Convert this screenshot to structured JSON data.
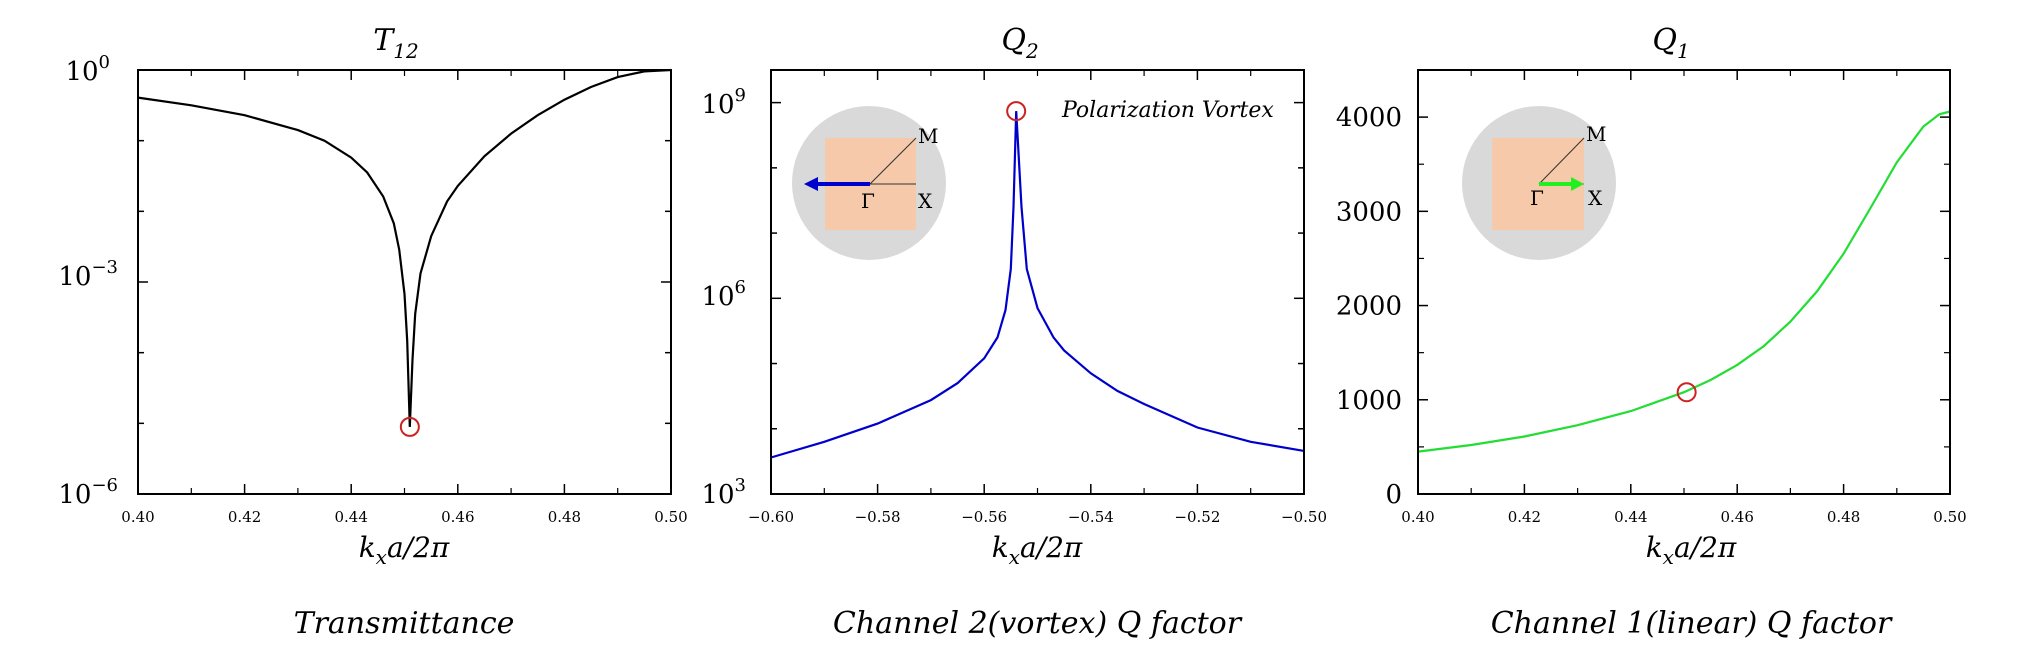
{
  "chart_data": [
    {
      "type": "line",
      "title": "T",
      "title_sub": "12",
      "xlabel": "k_x a/2π",
      "caption": "Transmittance",
      "yscale": "log",
      "xlim": [
        0.4,
        0.5
      ],
      "ylim_exp": [
        -6,
        0
      ],
      "x_ticks": [
        "0.40",
        "0.42",
        "0.44",
        "0.46",
        "0.48",
        "0.50"
      ],
      "y_ticks": [
        {
          "base": "10",
          "exp": "0"
        },
        {
          "base": "10",
          "exp": "−3"
        },
        {
          "base": "10",
          "exp": "−6"
        }
      ],
      "color": "#000000",
      "series": [
        {
          "x": [
            0.4,
            0.41,
            0.42,
            0.43,
            0.435,
            0.44,
            0.443,
            0.446,
            0.448,
            0.449,
            0.45,
            0.4505,
            0.451,
            0.4515,
            0.452,
            0.453,
            0.455,
            0.458,
            0.46,
            0.465,
            0.47,
            0.475,
            0.48,
            0.485,
            0.49,
            0.495,
            0.5
          ],
          "y_log10": [
            -0.39,
            -0.5,
            -0.64,
            -0.85,
            -1.0,
            -1.24,
            -1.45,
            -1.79,
            -2.17,
            -2.54,
            -3.17,
            -3.83,
            -5.05,
            -4.1,
            -3.45,
            -2.88,
            -2.35,
            -1.86,
            -1.64,
            -1.22,
            -0.9,
            -0.64,
            -0.42,
            -0.24,
            -0.1,
            -0.02,
            0.0
          ]
        }
      ],
      "marker": {
        "x": 0.451,
        "y_log10": -5.05
      }
    },
    {
      "type": "line",
      "title": "Q",
      "title_sub": "2",
      "xlabel": "k_x a/2π",
      "caption": "Channel 2(vortex) Q factor",
      "yscale": "log",
      "xlim": [
        -0.6,
        -0.5
      ],
      "ylim_exp": [
        3,
        9.5
      ],
      "x_ticks": [
        "−0.60",
        "−0.58",
        "−0.56",
        "−0.54",
        "−0.52",
        "−0.50"
      ],
      "y_ticks": [
        {
          "base": "10",
          "exp": "9"
        },
        {
          "base": "10",
          "exp": "6"
        },
        {
          "base": "10",
          "exp": "3"
        }
      ],
      "color": "#0000cc",
      "series": [
        {
          "x": [
            -0.6,
            -0.59,
            -0.58,
            -0.57,
            -0.565,
            -0.56,
            -0.5575,
            -0.556,
            -0.555,
            -0.5545,
            -0.554,
            -0.553,
            -0.552,
            -0.55,
            -0.547,
            -0.545,
            -0.54,
            -0.535,
            -0.53,
            -0.52,
            -0.51,
            -0.5
          ],
          "y_log10": [
            3.56,
            3.8,
            4.08,
            4.44,
            4.7,
            5.08,
            5.4,
            5.82,
            6.45,
            7.4,
            8.87,
            7.4,
            6.45,
            5.85,
            5.4,
            5.2,
            4.85,
            4.58,
            4.38,
            4.02,
            3.8,
            3.66
          ]
        }
      ],
      "marker": {
        "x": -0.554,
        "y_log10": 8.87
      },
      "annotation": "Polarization Vortex",
      "inset": {
        "labels": [
          "M",
          "Γ",
          "X"
        ],
        "arrow_color": "#0000cc",
        "arrow_direction": "left"
      }
    },
    {
      "type": "line",
      "title": "Q",
      "title_sub": "1",
      "xlabel": "k_x a/2π",
      "caption": "Channel 1(linear) Q factor",
      "yscale": "linear",
      "xlim": [
        0.4,
        0.5
      ],
      "ylim": [
        0,
        4500
      ],
      "x_ticks": [
        "0.40",
        "0.42",
        "0.44",
        "0.46",
        "0.48",
        "0.50"
      ],
      "y_ticks": [
        "4000",
        "3000",
        "2000",
        "1000",
        "0"
      ],
      "color": "#22dd33",
      "series": [
        {
          "x": [
            0.4,
            0.41,
            0.42,
            0.43,
            0.44,
            0.45,
            0.455,
            0.46,
            0.465,
            0.47,
            0.475,
            0.48,
            0.485,
            0.49,
            0.495,
            0.498,
            0.5
          ],
          "y": [
            450,
            520,
            610,
            730,
            880,
            1080,
            1210,
            1370,
            1570,
            1830,
            2150,
            2550,
            3030,
            3520,
            3900,
            4030,
            4060
          ]
        }
      ],
      "marker": {
        "x": 0.4505,
        "y": 1080
      },
      "inset": {
        "labels": [
          "M",
          "Γ",
          "X"
        ],
        "arrow_color": "#22ee22",
        "arrow_direction": "right"
      }
    }
  ]
}
